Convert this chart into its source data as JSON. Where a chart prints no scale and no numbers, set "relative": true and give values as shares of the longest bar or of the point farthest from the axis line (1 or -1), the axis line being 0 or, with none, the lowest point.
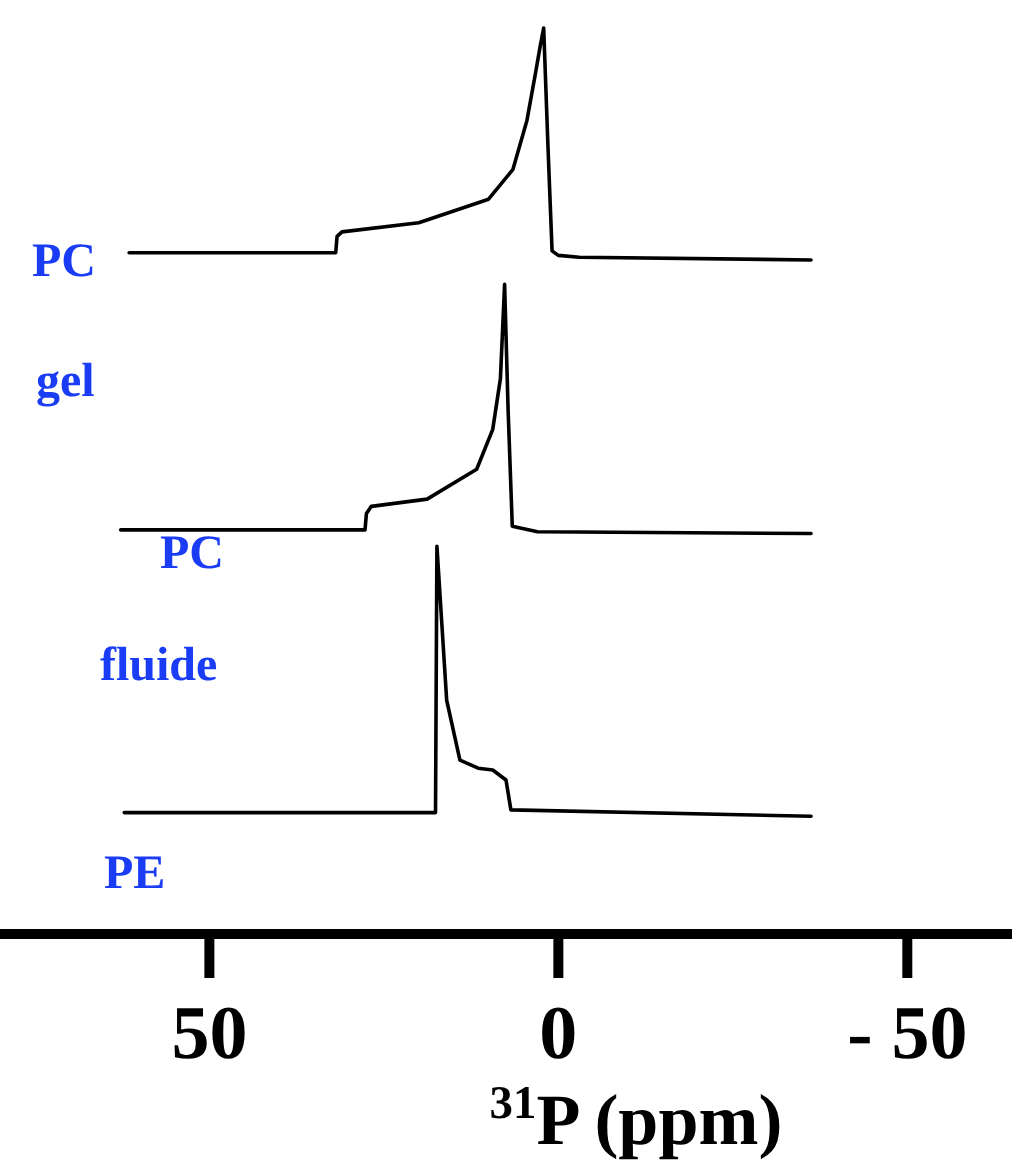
{
  "chart_data": {
    "type": "line",
    "relative": true,
    "xlim": [
      80,
      -65
    ],
    "tick_labels": "x",
    "xticks": [
      50,
      0,
      {
        "value": -50,
        "label": "- 50"
      }
    ],
    "xlabel": "$^{31}$P (ppm)",
    "annotations": [
      "PC",
      "gel",
      "PC",
      "fluide",
      "PE"
    ],
    "series": [
      {
        "color": "#000000",
        "x": [
          61.5,
          31.9,
          31.7,
          31.0,
          20,
          10,
          6.5,
          4.5,
          3.3,
          2.6,
          2.1,
          1.5,
          0.9,
          0,
          -3,
          -36.2
        ],
        "values": [
          0.752,
          0.752,
          0.77,
          0.775,
          0.785,
          0.811,
          0.844,
          0.898,
          0.949,
          0.98,
          1,
          0.872,
          0.754,
          0.749,
          0.747,
          0.744
        ]
      },
      {
        "color": "#000000",
        "x": [
          62.7,
          27.7,
          27.5,
          26.8,
          18.8,
          11.7,
          9.4,
          8.3,
          7.7,
          7.2,
          6.6,
          3,
          -36.2
        ],
        "values": [
          0.446,
          0.446,
          0.464,
          0.472,
          0.48,
          0.513,
          0.557,
          0.613,
          0.717,
          0.579,
          0.45,
          0.444,
          0.442
        ]
      },
      {
        "color": "#000000",
        "x": [
          62.2,
          17.6,
          17.4,
          16.0,
          14.1,
          11.5,
          9.4,
          7.5,
          6.8,
          -36.2
        ],
        "values": [
          0.134,
          0.134,
          0.428,
          0.258,
          0.192,
          0.183,
          0.181,
          0.17,
          0.137,
          0.13
        ]
      }
    ]
  }
}
